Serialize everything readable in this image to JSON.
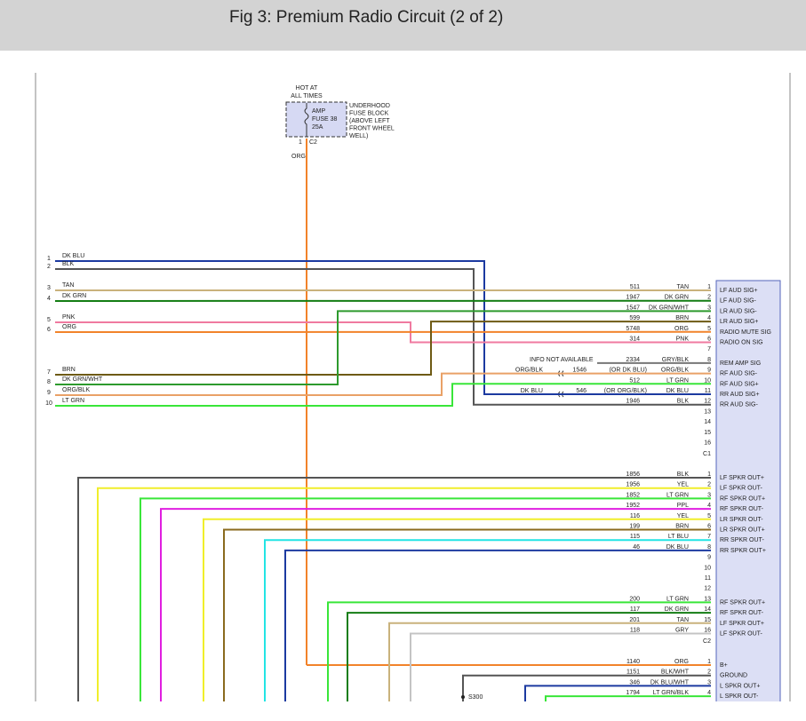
{
  "header": {
    "title": "Fig 3: Premium Radio Circuit (2 of 2)"
  },
  "fuse": {
    "hot_label": [
      "HOT AT",
      "ALL TIMES"
    ],
    "fuse_label": [
      "AMP",
      "FUSE 38",
      "25A"
    ],
    "location": [
      "UNDERHOOD",
      "FUSE BLOCK",
      "(ABOVE LEFT",
      "FRONT WHEEL",
      "WELL)"
    ],
    "pin": 1,
    "connector": "C2",
    "wire_color": "ORG"
  },
  "left_pins": [
    {
      "pin": 1,
      "color": "DK BLU"
    },
    {
      "pin": 2,
      "color": "BLK"
    },
    {
      "pin": 3,
      "color": "TAN"
    },
    {
      "pin": 4,
      "color": "DK GRN"
    },
    {
      "pin": 5,
      "color": "PNK"
    },
    {
      "pin": 6,
      "color": "ORG"
    },
    {
      "pin": 7,
      "color": "BRN"
    },
    {
      "pin": 8,
      "color": "DK GRN/WHT"
    },
    {
      "pin": 9,
      "color": "ORG/BLK"
    },
    {
      "pin": 10,
      "color": "LT GRN"
    }
  ],
  "connectors": [
    {
      "name": "C1",
      "rows": [
        {
          "pin": 1,
          "circuit": 511,
          "color": "TAN",
          "signal": "LF AUD SIG+"
        },
        {
          "pin": 2,
          "circuit": 1947,
          "color": "DK GRN",
          "signal": "LF AUD SIG-"
        },
        {
          "pin": 3,
          "circuit": 1547,
          "color": "DK GRN/WHT",
          "signal": "LR AUD SIG-"
        },
        {
          "pin": 4,
          "circuit": 599,
          "color": "BRN",
          "signal": "LR AUD SIG+"
        },
        {
          "pin": 5,
          "circuit": 5748,
          "color": "ORG",
          "signal": "RADIO MUTE SIG"
        },
        {
          "pin": 6,
          "circuit": 314,
          "color": "PNK",
          "signal": "RADIO ON SIG"
        },
        {
          "pin": 7
        },
        {
          "pin": 8,
          "circuit": 2334,
          "color": "GRY/BLK",
          "signal": "REM AMP SIG",
          "note": "INFO NOT AVAILABLE"
        },
        {
          "pin": 9,
          "circuit": 1546,
          "color": "ORG/BLK",
          "signal": "RF AUD SIG-",
          "splice_color": "ORG/BLK",
          "alt_color": "(OR DK BLU)"
        },
        {
          "pin": 10,
          "circuit": 512,
          "color": "LT GRN",
          "signal": "RF AUD SIG+"
        },
        {
          "pin": 11,
          "circuit": 546,
          "color": "DK BLU",
          "signal": "RR AUD SIG+",
          "splice_color": "DK BLU",
          "alt_color": "(OR ORG/BLK)"
        },
        {
          "pin": 12,
          "circuit": 1946,
          "color": "BLK",
          "signal": "RR AUD SIG-"
        },
        {
          "pin": 13
        },
        {
          "pin": 14
        },
        {
          "pin": 15
        },
        {
          "pin": 16
        }
      ]
    },
    {
      "name": "C2",
      "rows": [
        {
          "pin": 1,
          "circuit": 1856,
          "color": "BLK",
          "signal": "LF SPKR OUT+"
        },
        {
          "pin": 2,
          "circuit": 1956,
          "color": "YEL",
          "signal": "LF SPKR OUT-"
        },
        {
          "pin": 3,
          "circuit": 1852,
          "color": "LT GRN",
          "signal": "RF SPKR OUT+"
        },
        {
          "pin": 4,
          "circuit": 1952,
          "color": "PPL",
          "signal": "RF SPKR OUT-"
        },
        {
          "pin": 5,
          "circuit": 116,
          "color": "YEL",
          "signal": "LR SPKR OUT-"
        },
        {
          "pin": 6,
          "circuit": 199,
          "color": "BRN",
          "signal": "LR SPKR OUT+"
        },
        {
          "pin": 7,
          "circuit": 115,
          "color": "LT BLU",
          "signal": "RR SPKR OUT-"
        },
        {
          "pin": 8,
          "circuit": 46,
          "color": "DK BLU",
          "signal": "RR SPKR OUT+"
        },
        {
          "pin": 9
        },
        {
          "pin": 10
        },
        {
          "pin": 11
        },
        {
          "pin": 12
        },
        {
          "pin": 13,
          "circuit": 200,
          "color": "LT GRN",
          "signal": "RF SPKR OUT+"
        },
        {
          "pin": 14,
          "circuit": 117,
          "color": "DK GRN",
          "signal": "RF SPKR OUT-"
        },
        {
          "pin": 15,
          "circuit": 201,
          "color": "TAN",
          "signal": "LF SPKR OUT+"
        },
        {
          "pin": 16,
          "circuit": 118,
          "color": "GRY",
          "signal": "LF SPKR OUT-"
        }
      ]
    },
    {
      "rows": [
        {
          "pin": 1,
          "circuit": 1140,
          "color": "ORG",
          "signal": "B+"
        },
        {
          "pin": 2,
          "circuit": 1151,
          "color": "BLK/WHT",
          "signal": "GROUND"
        },
        {
          "pin": 3,
          "circuit": 346,
          "color": "DK BLU/WHT",
          "signal": "L SPKR OUT+"
        },
        {
          "pin": 4,
          "circuit": 1794,
          "color": "LT GRN/BLK",
          "signal": "L SPKR OUT-"
        }
      ]
    }
  ],
  "splice": "S300"
}
